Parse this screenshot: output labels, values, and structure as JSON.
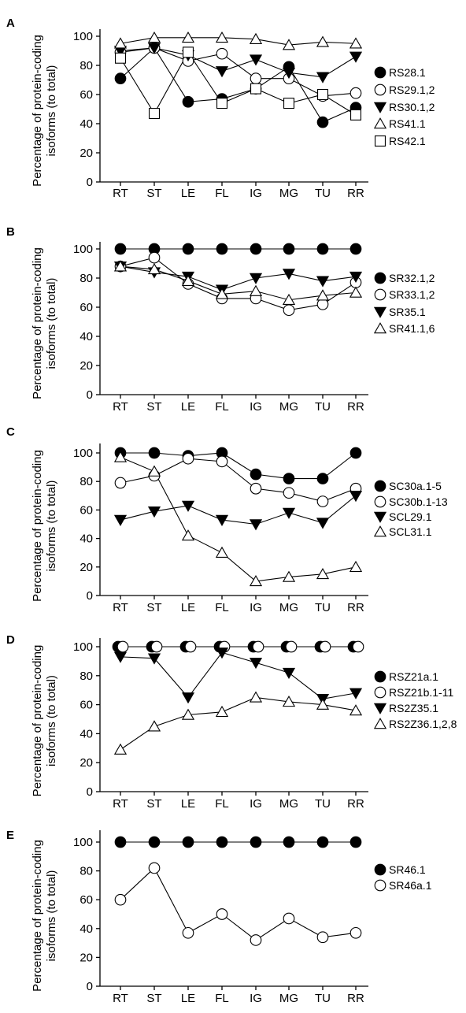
{
  "chart_data": [
    {
      "panel": "A",
      "type": "line",
      "ylabel": "Percentage of protein-coding isoforms (to total)",
      "ylim": [
        0,
        100
      ],
      "yticks": [
        0,
        20,
        40,
        60,
        80,
        100
      ],
      "categories": [
        "RT",
        "ST",
        "LE",
        "FL",
        "IG",
        "MG",
        "TU",
        "RR"
      ],
      "series": [
        {
          "name": "RS28.1",
          "marker": "filled-circle",
          "values": [
            71,
            92,
            55,
            57,
            64,
            79,
            41,
            51
          ]
        },
        {
          "name": "RS29.1,2",
          "marker": "open-circle",
          "values": [
            89,
            92,
            83,
            88,
            71,
            71,
            59,
            61
          ]
        },
        {
          "name": "RS30.1,2",
          "marker": "filled-triangle-down",
          "values": [
            90,
            92,
            87,
            76,
            84,
            75,
            72,
            86
          ]
        },
        {
          "name": "RS41.1",
          "marker": "open-triangle-up",
          "values": [
            95,
            99,
            99,
            99,
            98,
            94,
            96,
            95
          ]
        },
        {
          "name": "RS42.1",
          "marker": "open-square",
          "values": [
            85,
            47,
            89,
            54,
            64,
            54,
            60,
            46
          ]
        }
      ]
    },
    {
      "panel": "B",
      "type": "line",
      "ylabel": "Percentage of protein-coding isoforms (to total)",
      "ylim": [
        0,
        100
      ],
      "yticks": [
        0,
        20,
        40,
        60,
        80,
        100
      ],
      "categories": [
        "RT",
        "ST",
        "LE",
        "FL",
        "IG",
        "MG",
        "TU",
        "RR"
      ],
      "series": [
        {
          "name": "SR32.1,2",
          "marker": "filled-circle",
          "values": [
            100,
            100,
            100,
            100,
            100,
            100,
            100,
            100
          ]
        },
        {
          "name": "SR33.1,2",
          "marker": "open-circle",
          "values": [
            88,
            94,
            76,
            66,
            66,
            58,
            62,
            77
          ]
        },
        {
          "name": "SR35.1",
          "marker": "filled-triangle-down",
          "values": [
            88,
            84,
            81,
            72,
            80,
            83,
            78,
            81
          ]
        },
        {
          "name": "SR41.1,6",
          "marker": "open-triangle-up",
          "values": [
            88,
            86,
            78,
            69,
            71,
            65,
            68,
            70
          ]
        }
      ]
    },
    {
      "panel": "C",
      "type": "line",
      "ylabel": "Percentage of protein-coding isoforms (to total)",
      "ylim": [
        0,
        100
      ],
      "yticks": [
        0,
        20,
        40,
        60,
        80,
        100
      ],
      "categories": [
        "RT",
        "ST",
        "LE",
        "FL",
        "IG",
        "MG",
        "TU",
        "RR"
      ],
      "series": [
        {
          "name": "SC30a.1-5",
          "marker": "filled-circle",
          "values": [
            100,
            100,
            98,
            100,
            85,
            82,
            82,
            100
          ]
        },
        {
          "name": "SC30b.1-13",
          "marker": "open-circle",
          "values": [
            79,
            84,
            96,
            94,
            75,
            72,
            66,
            75
          ]
        },
        {
          "name": "SCL29.1",
          "marker": "filled-triangle-down",
          "values": [
            53,
            59,
            63,
            53,
            50,
            58,
            51,
            70
          ]
        },
        {
          "name": "SCL31.1",
          "marker": "open-triangle-up",
          "values": [
            97,
            87,
            42,
            30,
            10,
            13,
            15,
            20
          ]
        }
      ]
    },
    {
      "panel": "D",
      "type": "line",
      "ylabel": "Percentage of protein-coding isoforms (to total)",
      "ylim": [
        0,
        100
      ],
      "yticks": [
        0,
        20,
        40,
        60,
        80,
        100
      ],
      "categories": [
        "RT",
        "ST",
        "LE",
        "FL",
        "IG",
        "MG",
        "TU",
        "RR"
      ],
      "series": [
        {
          "name": "RSZ21a.1",
          "marker": "filled-circle",
          "values": [
            100,
            100,
            100,
            100,
            100,
            100,
            100,
            100
          ]
        },
        {
          "name": "RSZ21b.1-11",
          "marker": "open-circle",
          "values": [
            100,
            100,
            100,
            100,
            100,
            100,
            100,
            100
          ]
        },
        {
          "name": "RS2Z35.1",
          "marker": "filled-triangle-down",
          "values": [
            93,
            92,
            65,
            96,
            89,
            82,
            64,
            68
          ]
        },
        {
          "name": "RS2Z36.1,2,8",
          "marker": "open-triangle-up",
          "values": [
            29,
            45,
            53,
            55,
            65,
            62,
            60,
            56
          ]
        }
      ]
    },
    {
      "panel": "E",
      "type": "line",
      "ylabel": "Percentage of protein-coding isoforms (to total)",
      "ylim": [
        0,
        100
      ],
      "yticks": [
        0,
        20,
        40,
        60,
        80,
        100
      ],
      "categories": [
        "RT",
        "ST",
        "LE",
        "FL",
        "IG",
        "MG",
        "TU",
        "RR"
      ],
      "series": [
        {
          "name": "SR46.1",
          "marker": "filled-circle",
          "values": [
            100,
            100,
            100,
            100,
            100,
            100,
            100,
            100
          ]
        },
        {
          "name": "SR46a.1",
          "marker": "open-circle",
          "values": [
            60,
            82,
            37,
            50,
            32,
            47,
            34,
            37
          ]
        }
      ]
    }
  ]
}
